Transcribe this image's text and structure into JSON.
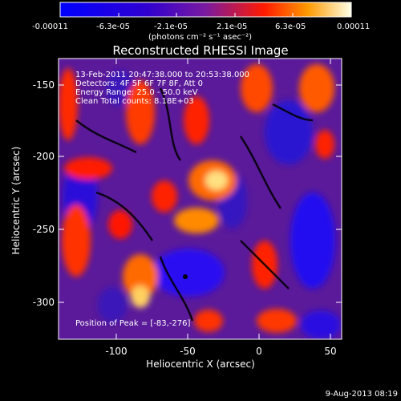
{
  "colorbar": {
    "tick_labels": [
      "-0.00011",
      "-6.3e-05",
      "-2.1e-05",
      "2.1e-05",
      "6.3e-05",
      "0.00011"
    ],
    "unit_label": "(photons cm⁻² s⁻¹ asec⁻²)"
  },
  "title": "Reconstructed RHESSI Image",
  "info": {
    "line1": "13-Feb-2011 20:47:38.000 to 20:53:38.000",
    "line2": "Detectors: 4F 5F 6F 7F 8F, Att 0",
    "line3": "Energy Range: 25.0 - 50.0 keV",
    "line4": "Clean     Total counts: 8.18E+03"
  },
  "peak_label": "Position of Peak = [-83,-276]",
  "axes": {
    "xlabel": "Heliocentric X (arcsec)",
    "ylabel": "Heliocentric Y (arcsec)",
    "xticks": [
      "-100",
      "-50",
      "0",
      "50"
    ],
    "yticks": [
      "-150",
      "-200",
      "-250",
      "-300"
    ]
  },
  "timestamp": "9-Aug-2013 08:19",
  "colors": {
    "background": "#000000",
    "neg_max": "#0000ff",
    "neutral": "#5a1a9a",
    "pos_mid": "#ff2a00",
    "pos_max": "#ffffe0"
  }
}
